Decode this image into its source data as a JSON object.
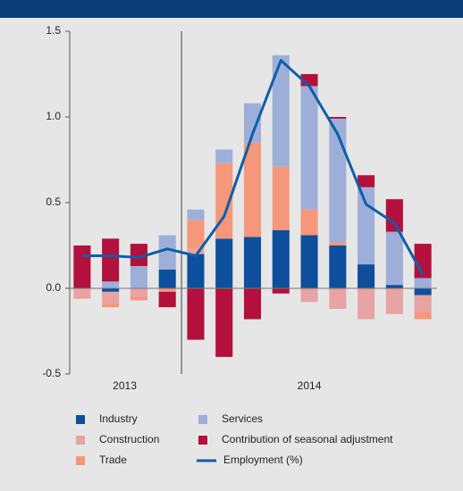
{
  "chart_data": {
    "type": "bar",
    "categories": [
      null,
      null,
      null,
      null,
      null,
      null,
      null,
      null,
      null,
      null,
      null,
      null,
      null
    ],
    "groups": [
      {
        "label": "2013",
        "from": 0,
        "to": 3
      },
      {
        "label": "2014",
        "from": 4,
        "to": 12
      }
    ],
    "series": [
      {
        "name": "Industry",
        "color": "#0d4f9c",
        "values": [
          0,
          -0.02,
          0,
          0.11,
          0.2,
          0.29,
          0.3,
          0.34,
          0.31,
          0.25,
          0.14,
          0.02,
          -0.04
        ]
      },
      {
        "name": "Construction",
        "color": "#e8a3a3",
        "values": [
          -0.05,
          -0.07,
          -0.05,
          0,
          0.03,
          0,
          0,
          0,
          -0.08,
          -0.12,
          -0.18,
          -0.15,
          -0.1
        ]
      },
      {
        "name": "Trade",
        "color": "#f5977a",
        "values": [
          -0.01,
          -0.02,
          -0.02,
          -0.02,
          0.17,
          0.44,
          0.55,
          0.37,
          0.15,
          0.02,
          0,
          0,
          -0.04
        ]
      },
      {
        "name": "Services",
        "color": "#9dafd9",
        "values": [
          0,
          0.04,
          0.13,
          0.2,
          0.06,
          0.08,
          0.23,
          0.65,
          0.72,
          0.72,
          0.45,
          0.31,
          0.06
        ]
      },
      {
        "name": "Contribution of seasonal adjustment",
        "color": "#b3103d",
        "values": [
          0.25,
          0.25,
          0.13,
          -0.09,
          -0.3,
          -0.4,
          -0.18,
          -0.03,
          0.07,
          0.01,
          0.07,
          0.19,
          0.2
        ]
      },
      {
        "name": "Employment (%)",
        "type": "line",
        "color": "#0e5ea8",
        "values": [
          0.19,
          0.19,
          0.18,
          0.23,
          0.19,
          0.42,
          0.9,
          1.33,
          1.18,
          0.9,
          0.49,
          0.38,
          0.08
        ]
      }
    ],
    "ylim": [
      -0.5,
      1.5
    ],
    "yticks": [
      -0.5,
      {
        "value": 0.0,
        "label": "0.0"
      },
      0.5,
      {
        "value": 1.0,
        "label": "1.0"
      },
      1.5
    ],
    "grid": false,
    "legend": "bottom"
  }
}
